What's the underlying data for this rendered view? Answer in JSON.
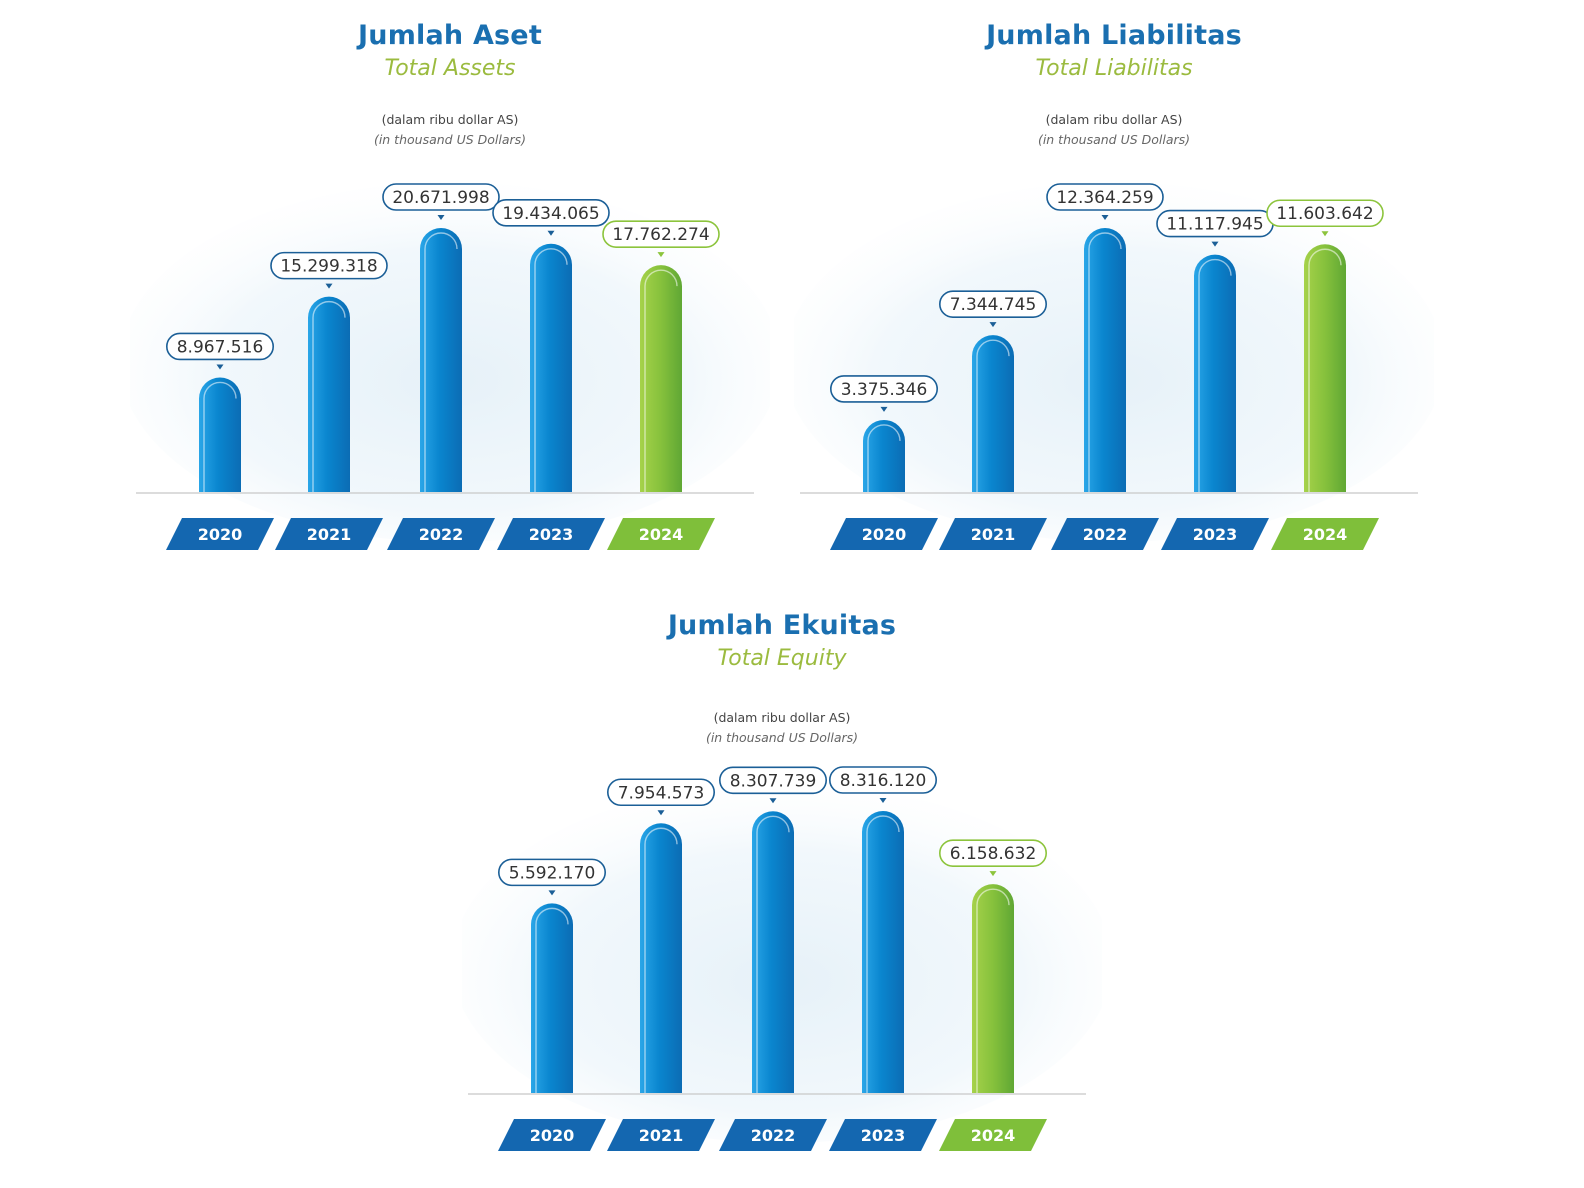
{
  "colors": {
    "blue_bar": "#0a86cf",
    "green_bar": "#8cc43c",
    "title_blue": "#1a6fb0",
    "subtitle_green": "#9bbb3f",
    "tag_blue": "#1467b0",
    "tag_green": "#7fbf3a",
    "axis_line": "#c8c8c8"
  },
  "chart_data": [
    {
      "type": "bar",
      "title": "Jumlah Aset",
      "subtitle": "Total Assets",
      "unit_id": "(dalam ribu dollar AS)",
      "unit_en": "(in thousand US Dollars)",
      "categories": [
        "2020",
        "2021",
        "2022",
        "2023",
        "2024"
      ],
      "values": [
        8967516,
        15299318,
        20671998,
        19434065,
        17762274
      ],
      "value_labels": [
        "8.967.516",
        "15.299.318",
        "20.671.998",
        "19.434.065",
        "17.762.274"
      ],
      "highlight": "2024"
    },
    {
      "type": "bar",
      "title": "Jumlah Liabilitas",
      "subtitle": "Total Liabilitas",
      "unit_id": "(dalam ribu dollar AS)",
      "unit_en": "(in thousand US Dollars)",
      "categories": [
        "2020",
        "2021",
        "2022",
        "2023",
        "2024"
      ],
      "values": [
        3375346,
        7344745,
        12364259,
        11117945,
        11603642
      ],
      "value_labels": [
        "3.375.346",
        "7.344.745",
        "12.364.259",
        "11.117.945",
        "11.603.642"
      ],
      "highlight": "2024"
    },
    {
      "type": "bar",
      "title": "Jumlah Ekuitas",
      "subtitle": "Total Equity",
      "unit_id": "(dalam ribu dollar AS)",
      "unit_en": "(in thousand US Dollars)",
      "categories": [
        "2020",
        "2021",
        "2022",
        "2023",
        "2024"
      ],
      "values": [
        5592170,
        7954573,
        8307739,
        8316120,
        6158632
      ],
      "value_labels": [
        "5.592.170",
        "7.954.573",
        "8.307.739",
        "8.316.120",
        "6.158.632"
      ],
      "highlight": "2024"
    }
  ]
}
